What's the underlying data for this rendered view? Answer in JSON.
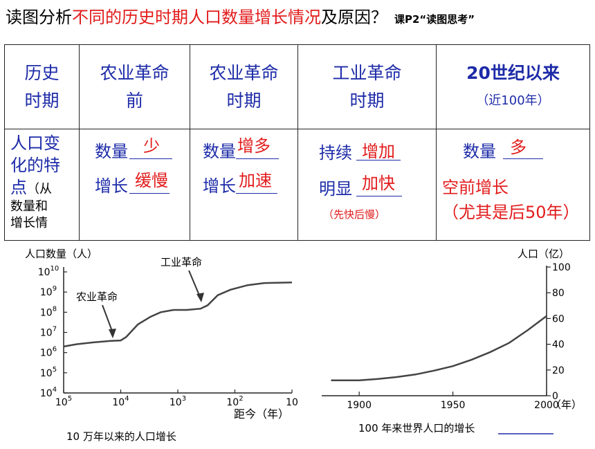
{
  "title": {
    "part1": "读图分析",
    "part2": "不同的历史时期人口数量增长情况",
    "part3": "及原因？",
    "ref": "课P2“读图思考”"
  },
  "table": {
    "col0": {
      "line1": "历史",
      "line2": "时期"
    },
    "col1": {
      "line1": "农业革命",
      "line2": "前"
    },
    "col2": {
      "line1": "农业革命",
      "line2": "时期"
    },
    "col3": {
      "line1": "工业革命",
      "line2": "时期"
    },
    "col4": {
      "line1": "20世纪以来",
      "line2": "（近100年）"
    },
    "rowlabel": {
      "l1": "人口变",
      "l2": "化的特",
      "l3": "点",
      "l3b": "（从",
      "l4": "数量和",
      "l5": "增长情"
    },
    "c1": {
      "k1": "数量",
      "a1": "少",
      "k2": "增长",
      "a2": "缓慢"
    },
    "c2": {
      "k1": "数量",
      "a1": "增多",
      "k2": "增长",
      "a2": "加速"
    },
    "c3": {
      "k1": "持续",
      "a1": "增加",
      "k2": "明显",
      "a2": "加快",
      "note": "（先快后慢）"
    },
    "c4": {
      "k1": "数量",
      "a1": "多",
      "t2": "空前增长",
      "t3": "（尤其是后50年）"
    }
  },
  "chart_data": [
    {
      "type": "line",
      "title": "10 万年以来的人口增长",
      "ylabel": "人口数量（人）",
      "xlabel": "距今（年）",
      "x_scale": "log-reversed",
      "y_scale": "log",
      "x_ticks": [
        "10^5",
        "10^4",
        "10^3",
        "10^2",
        "10"
      ],
      "y_ticks": [
        "10^4",
        "10^5",
        "10^6",
        "10^7",
        "10^8",
        "10^9",
        "10^10"
      ],
      "annotations": [
        "农业革命",
        "工业革命"
      ],
      "x": [
        100000,
        60000,
        30000,
        15000,
        10000,
        8000,
        5000,
        3000,
        2000,
        1200,
        700,
        400,
        300,
        200,
        120,
        60,
        30,
        10
      ],
      "y": [
        2000000,
        2600000,
        3200000,
        3800000,
        4000000,
        6000000,
        25000000,
        60000000,
        100000000,
        130000000,
        130000000,
        150000000,
        220000000,
        700000000,
        1300000000,
        2200000000,
        2800000000,
        3000000000
      ],
      "ylim": [
        10000,
        10000000000
      ]
    },
    {
      "type": "line",
      "title": "100 年来世界人口的增长",
      "ylabel": "人口（亿）",
      "xlabel": "（年）",
      "x_ticks": [
        "1900",
        "1950",
        "2000"
      ],
      "y_ticks": [
        "0",
        "20",
        "40",
        "60",
        "80",
        "100"
      ],
      "x": [
        1885,
        1900,
        1910,
        1920,
        1930,
        1940,
        1950,
        1960,
        1970,
        1980,
        1990,
        2000
      ],
      "y": [
        12,
        12,
        13,
        14.5,
        16.5,
        19.5,
        23,
        28,
        34,
        41,
        51,
        62
      ],
      "ylim": [
        0,
        100
      ]
    }
  ]
}
